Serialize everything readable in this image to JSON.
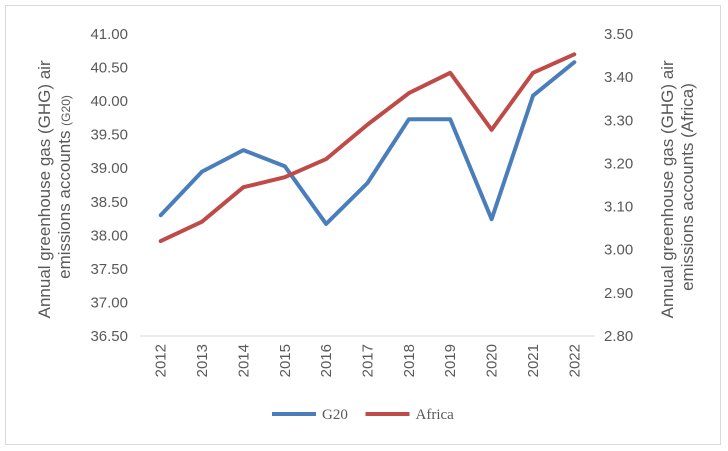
{
  "chart_data": {
    "type": "line",
    "x": [
      "2012",
      "2013",
      "2014",
      "2015",
      "2016",
      "2017",
      "2018",
      "2019",
      "2020",
      "2021",
      "2022"
    ],
    "series": [
      {
        "name": "G20",
        "axis": "left",
        "color": "#4a7ebb",
        "values": [
          38.3,
          38.95,
          39.27,
          39.03,
          38.17,
          38.78,
          39.73,
          39.73,
          38.24,
          40.08,
          40.58
        ]
      },
      {
        "name": "Africa",
        "axis": "right",
        "color": "#be4b48",
        "values": [
          3.02,
          3.065,
          3.145,
          3.168,
          3.21,
          3.29,
          3.363,
          3.41,
          3.278,
          3.41,
          3.453
        ]
      }
    ],
    "ylabel_left_main": "Annual greenhouse gas (GHG) air",
    "ylabel_left_sub": "emissions accounts",
    "ylabel_left_small": "(G20)",
    "ylabel_right_main": "Annual greenhouse gas (GHG) air",
    "ylabel_right_sub": "emissions accounts (Africa)",
    "ylim_left": [
      36.5,
      41.0
    ],
    "yticks_left": [
      "36.50",
      "37.00",
      "37.50",
      "38.00",
      "38.50",
      "39.00",
      "39.50",
      "40.00",
      "40.50",
      "41.00"
    ],
    "ylim_right": [
      2.8,
      3.5
    ],
    "yticks_right": [
      "2.80",
      "2.90",
      "3.00",
      "3.10",
      "3.20",
      "3.30",
      "3.40",
      "3.50"
    ],
    "grid": false,
    "legend_position": "bottom"
  }
}
